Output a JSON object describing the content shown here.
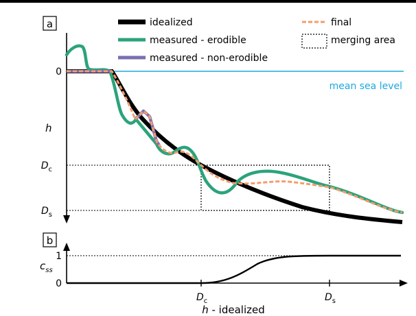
{
  "panels": {
    "a": {
      "tag": "a"
    },
    "b": {
      "tag": "b"
    }
  },
  "legend": {
    "idealized": "idealized",
    "measured_erodible": "measured - erodible",
    "measured_non_erodible": "measured - non-erodible",
    "final": "final",
    "merging_area": "merging area"
  },
  "labels": {
    "mean_sea_level": "mean sea level",
    "zero_a": "0",
    "h": "h",
    "dc_a_main": "D",
    "dc_a_sub": "c",
    "ds_a_main": "D",
    "ds_a_sub": "s",
    "one_b": "1",
    "zero_b": "0",
    "css_main": "c",
    "css_sub": "ss",
    "dc_b_main": "D",
    "dc_b_sub": "c",
    "ds_b_main": "D",
    "ds_b_sub": "s",
    "xlabel_italic": "h",
    "xlabel_rest": " - idealized"
  },
  "colors": {
    "idealized": "#000000",
    "measured_erodible": "#2ba37b",
    "measured_non_erodible": "#7a6fb0",
    "final": "#f39c6b",
    "mean_sea_level": "#1ba8e0"
  }
}
